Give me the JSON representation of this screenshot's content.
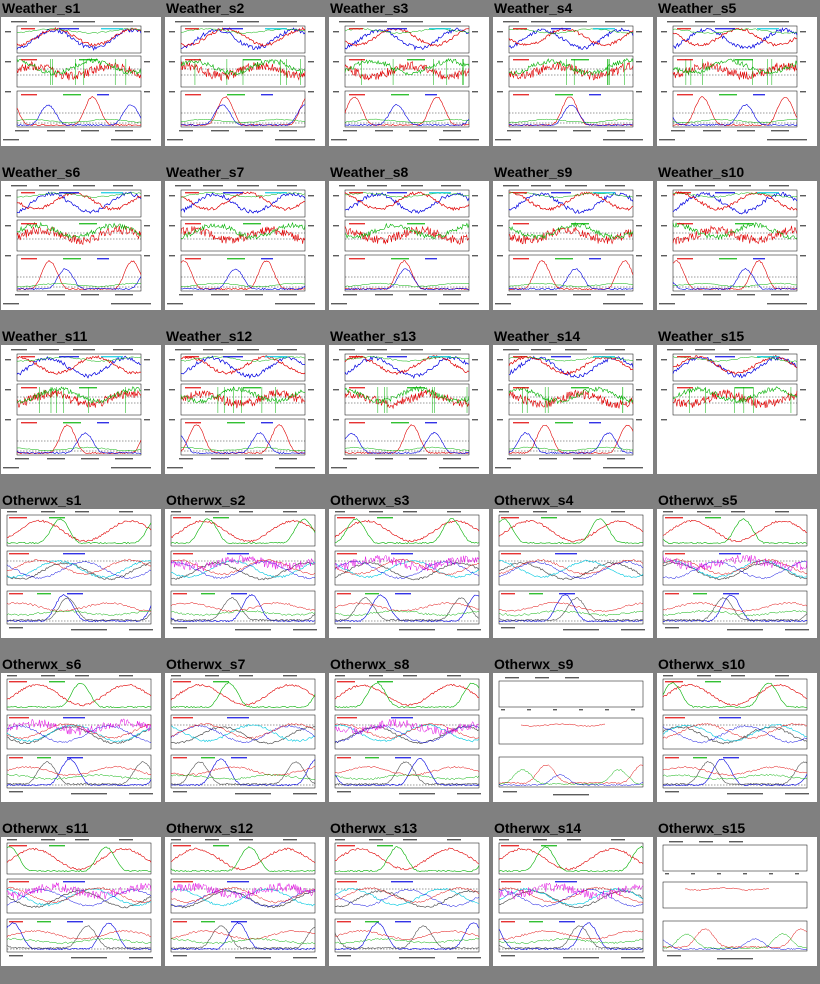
{
  "page": {
    "background": "#808080"
  },
  "rows": [
    {
      "kind": "weather",
      "cells": [
        {
          "title": "Weather_s1"
        },
        {
          "title": "Weather_s2"
        },
        {
          "title": "Weather_s3"
        },
        {
          "title": "Weather_s4"
        },
        {
          "title": "Weather_s5"
        }
      ]
    },
    {
      "kind": "weather",
      "cells": [
        {
          "title": "Weather_s6"
        },
        {
          "title": "Weather_s7"
        },
        {
          "title": "Weather_s8"
        },
        {
          "title": "Weather_s9"
        },
        {
          "title": "Weather_s10"
        }
      ]
    },
    {
      "kind": "weather",
      "cells": [
        {
          "title": "Weather_s11"
        },
        {
          "title": "Weather_s12"
        },
        {
          "title": "Weather_s13"
        },
        {
          "title": "Weather_s14"
        },
        {
          "title": "Weather_s15",
          "blank_bottom_panel": true
        }
      ]
    },
    {
      "kind": "otherwx",
      "cells": [
        {
          "title": "Otherwx_s1"
        },
        {
          "title": "Otherwx_s2"
        },
        {
          "title": "Otherwx_s3"
        },
        {
          "title": "Otherwx_s4"
        },
        {
          "title": "Otherwx_s5"
        }
      ]
    },
    {
      "kind": "otherwx",
      "cells": [
        {
          "title": "Otherwx_s6"
        },
        {
          "title": "Otherwx_s7"
        },
        {
          "title": "Otherwx_s8"
        },
        {
          "title": "Otherwx_s9",
          "sparse": true
        },
        {
          "title": "Otherwx_s10"
        }
      ]
    },
    {
      "kind": "otherwx",
      "cells": [
        {
          "title": "Otherwx_s11"
        },
        {
          "title": "Otherwx_s12"
        },
        {
          "title": "Otherwx_s13"
        },
        {
          "title": "Otherwx_s14"
        },
        {
          "title": "Otherwx_s15",
          "sparse": true
        }
      ]
    }
  ],
  "colors": {
    "red": "#e00000",
    "blue": "#0000e0",
    "green": "#00b000",
    "cyan": "#00c8e0",
    "magenta": "#e000e0",
    "gray": "#555555"
  }
}
